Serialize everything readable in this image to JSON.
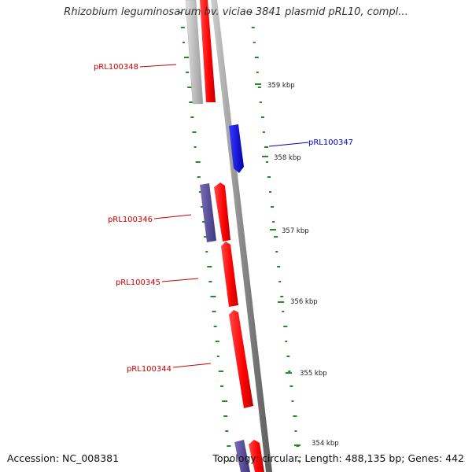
{
  "title": "Rhizobium leguminosarum bv. viciae 3841 plasmid pRL10, compl...",
  "footer": {
    "accession": "Accession: NC_008381",
    "stats": "Topology: circular; Length: 488,135 bp; Genes: 442"
  },
  "colors": {
    "forward_gene": "#ff0000",
    "reverse_gene": "#0000ff",
    "forward_gene_muted": "#c0c0c0",
    "reverse_gene_muted": "#5a4f9a",
    "backbone": "#999999",
    "gc_ticks": "#228b22",
    "label_red": "#cc0000",
    "label_blue": "#0000cc"
  },
  "scale_ticks": [
    "359 kbp",
    "358 kbp",
    "357 kbp",
    "356 kbp",
    "355 kbp",
    "354 kbp"
  ],
  "gene_labels": [
    {
      "name": "pRL100348",
      "color": "#cc0000"
    },
    {
      "name": "pRL100347",
      "color": "#0000cc"
    },
    {
      "name": "pRL100346",
      "color": "#cc0000"
    },
    {
      "name": "pRL100345",
      "color": "#cc0000"
    },
    {
      "name": "pRL100344",
      "color": "#cc0000"
    }
  ]
}
